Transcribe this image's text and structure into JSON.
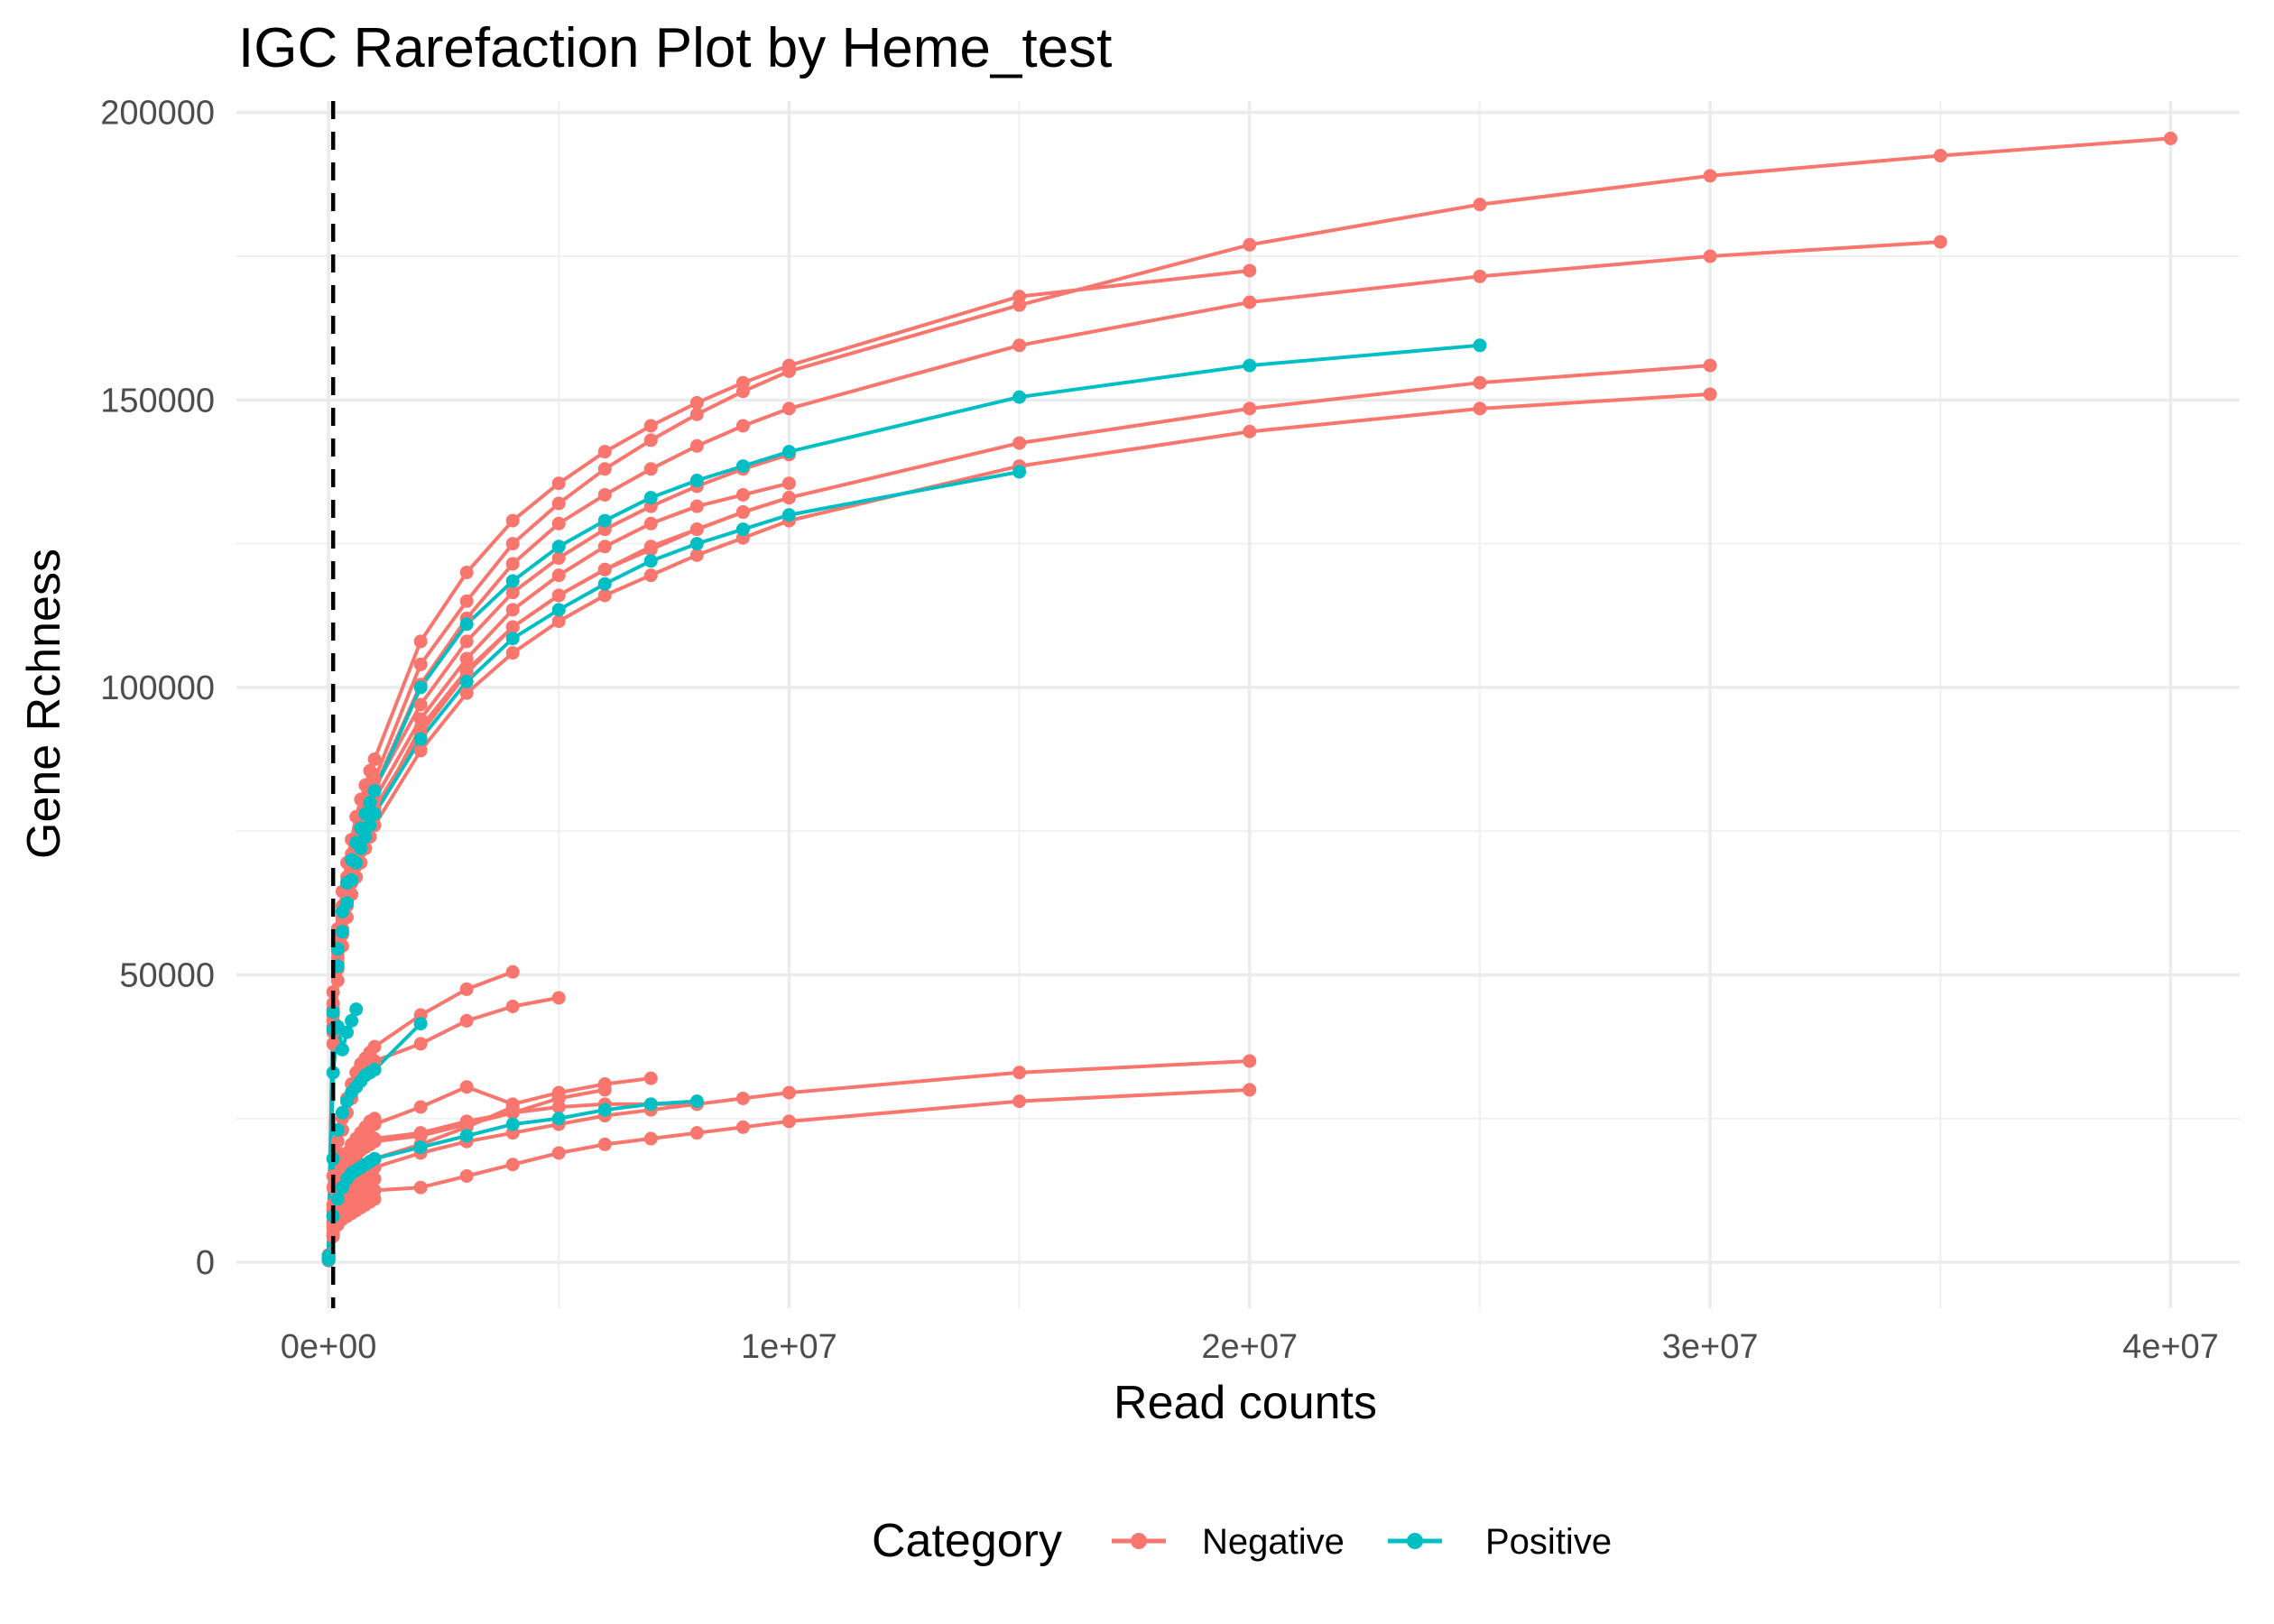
{
  "chart_data": {
    "type": "line",
    "title": "IGC Rarefaction Plot by Heme_test",
    "xlabel": "Read counts",
    "ylabel": "Gene Rchness",
    "xlim": [
      -2000000,
      41500000
    ],
    "ylim": [
      -8000,
      202000
    ],
    "x_ticks": [
      0,
      10000000,
      20000000,
      30000000,
      40000000
    ],
    "x_tick_labels": [
      "0e+00",
      "1e+07",
      "2e+07",
      "3e+07",
      "4e+07"
    ],
    "y_ticks": [
      0,
      50000,
      100000,
      150000,
      200000
    ],
    "y_tick_labels": [
      "0",
      "50000",
      "100000",
      "150000",
      "200000"
    ],
    "reference_line": {
      "x": 100000,
      "style": "dashed",
      "color": "#000000"
    },
    "grid": true,
    "legend": {
      "title": "Category",
      "placement": "bottom",
      "entries": [
        {
          "label": "Negative",
          "color": "#F8766D"
        },
        {
          "label": "Positive",
          "color": "#00BFC4"
        }
      ]
    },
    "series": [
      {
        "category": "Negative",
        "color": "#F8766D",
        "x": [
          1000,
          100000,
          200000,
          300000,
          400000,
          500000,
          600000,
          700000,
          800000,
          900000,
          1000000,
          2000000,
          3000000,
          4000000,
          5000000,
          6000000,
          7000000,
          8000000,
          9000000,
          10000000,
          15000000,
          20000000,
          25000000,
          30000000,
          35000000,
          40000000
        ],
        "y": [
          1200,
          45000,
          56000,
          62000,
          67000,
          71000,
          74000,
          77000,
          79500,
          82000,
          84000,
          104000,
          115000,
          125000,
          132000,
          138000,
          143000,
          147500,
          151500,
          155000,
          166500,
          177000,
          184000,
          189000,
          192500,
          195500
        ]
      },
      {
        "category": "Negative",
        "color": "#F8766D",
        "x": [
          1000,
          100000,
          200000,
          300000,
          400000,
          500000,
          600000,
          700000,
          800000,
          900000,
          1000000,
          2000000,
          3000000,
          4000000,
          5000000,
          6000000,
          7000000,
          8000000,
          9000000,
          10000000,
          15000000,
          20000000,
          25000000,
          30000000,
          35000000
        ],
        "y": [
          1100,
          43000,
          54000,
          60000,
          65000,
          69000,
          72000,
          75000,
          78000,
          80500,
          82500,
          100500,
          112000,
          121500,
          128500,
          133500,
          138000,
          142000,
          145500,
          148500,
          159500,
          167000,
          171500,
          175000,
          177500
        ]
      },
      {
        "category": "Negative",
        "color": "#F8766D",
        "x": [
          1000,
          100000,
          200000,
          300000,
          400000,
          500000,
          600000,
          700000,
          800000,
          900000,
          1000000,
          2000000,
          3000000,
          4000000,
          5000000,
          6000000,
          7000000,
          8000000,
          9000000,
          10000000,
          15000000,
          20000000
        ],
        "y": [
          1300,
          47000,
          58000,
          64500,
          69500,
          73500,
          77500,
          80500,
          83000,
          85500,
          87500,
          108000,
          120000,
          129000,
          135500,
          141000,
          145500,
          149500,
          153000,
          156000,
          168000,
          172500
        ]
      },
      {
        "category": "Negative",
        "color": "#F8766D",
        "x": [
          1000,
          100000,
          200000,
          300000,
          400000,
          500000,
          600000,
          700000,
          800000,
          900000,
          1000000,
          2000000,
          3000000,
          4000000,
          5000000,
          6000000,
          7000000,
          8000000,
          9000000,
          10000000,
          15000000,
          20000000,
          25000000,
          30000000
        ],
        "y": [
          1000,
          40000,
          51000,
          57000,
          62000,
          66000,
          69000,
          71500,
          74000,
          76000,
          78000,
          93000,
          103000,
          110500,
          116000,
          120500,
          124500,
          127500,
          130500,
          133000,
          142500,
          148500,
          153000,
          156000
        ]
      },
      {
        "category": "Negative",
        "color": "#F8766D",
        "x": [
          1000,
          100000,
          200000,
          300000,
          400000,
          500000,
          600000,
          700000,
          800000,
          900000,
          1000000,
          2000000,
          3000000,
          4000000,
          5000000,
          6000000,
          7000000,
          8000000,
          9000000,
          10000000,
          15000000,
          20000000,
          25000000,
          30000000
        ],
        "y": [
          950,
          38000,
          49000,
          55000,
          60000,
          64000,
          67000,
          69500,
          72000,
          74000,
          76000,
          89000,
          99000,
          106000,
          111500,
          116000,
          119500,
          123000,
          126000,
          129000,
          138500,
          144500,
          148500,
          151000
        ]
      },
      {
        "category": "Negative",
        "color": "#F8766D",
        "x": [
          1000,
          100000,
          200000,
          300000,
          400000,
          500000,
          600000,
          700000,
          800000,
          900000,
          1000000,
          2000000,
          3000000,
          4000000,
          5000000,
          6000000,
          7000000,
          8000000,
          9000000,
          10000000
        ],
        "y": [
          1150,
          44000,
          55000,
          61000,
          66000,
          70000,
          73000,
          76000,
          78500,
          80500,
          82500,
          97000,
          108000,
          116500,
          122500,
          127500,
          131500,
          135000,
          138000,
          140500
        ]
      },
      {
        "category": "Negative",
        "color": "#F8766D",
        "x": [
          1000,
          100000,
          200000,
          300000,
          400000,
          500000,
          600000,
          700000,
          800000,
          900000,
          1000000,
          2000000,
          3000000,
          4000000,
          5000000,
          6000000,
          7000000,
          8000000,
          9000000,
          10000000
        ],
        "y": [
          1000,
          41000,
          52000,
          58000,
          63000,
          67000,
          70000,
          72500,
          75000,
          77000,
          79000,
          92000,
          102500,
          110500,
          116000,
          120500,
          124000,
          127500,
          130500,
          133000
        ]
      },
      {
        "category": "Negative",
        "color": "#F8766D",
        "x": [
          1000,
          100000,
          200000,
          300000,
          400000,
          500000,
          600000,
          700000,
          800000,
          900000,
          1000000,
          2000000,
          3000000,
          4000000,
          5000000,
          6000000,
          7000000,
          8000000,
          9000000,
          10000000
        ],
        "y": [
          1050,
          42000,
          53000,
          59500,
          64500,
          68500,
          71500,
          74000,
          76500,
          78500,
          80500,
          94500,
          105000,
          113500,
          119500,
          124500,
          128500,
          131500,
          133500,
          135500
        ]
      },
      {
        "category": "Negative",
        "color": "#F8766D",
        "x": [
          1000,
          100000,
          200000,
          300000,
          400000,
          500000,
          600000,
          700000,
          800000,
          900000,
          1000000,
          2000000,
          3000000,
          4000000
        ],
        "y": [
          600,
          15000,
          21000,
          25000,
          28500,
          31000,
          33000,
          34500,
          35500,
          36500,
          37500,
          43000,
          47500,
          50500
        ]
      },
      {
        "category": "Negative",
        "color": "#F8766D",
        "x": [
          1000,
          100000,
          200000,
          300000,
          400000,
          500000,
          600000,
          700000,
          800000,
          900000,
          1000000,
          2000000,
          3000000,
          4000000,
          5000000
        ],
        "y": [
          550,
          13000,
          19000,
          23000,
          26000,
          28500,
          30500,
          32000,
          33000,
          34000,
          35000,
          38000,
          42000,
          44500,
          46000
        ]
      },
      {
        "category": "Negative",
        "color": "#F8766D",
        "x": [
          1000,
          100000,
          200000,
          300000,
          400000,
          500000,
          600000,
          700000,
          800000,
          900000,
          1000000,
          2000000,
          3000000,
          4000000,
          5000000,
          6000000,
          7000000,
          8000000,
          9000000,
          10000000,
          15000000,
          20000000
        ],
        "y": [
          400,
          8000,
          11500,
          14000,
          16000,
          17500,
          18500,
          19500,
          20500,
          21000,
          21500,
          22500,
          24500,
          26000,
          27000,
          27500,
          27500,
          27500,
          28500,
          29500,
          33000,
          35000
        ]
      },
      {
        "category": "Negative",
        "color": "#F8766D",
        "x": [
          1000,
          100000,
          200000,
          300000,
          400000,
          500000,
          600000,
          700000,
          800000,
          900000,
          1000000,
          2000000,
          3000000,
          4000000,
          5000000,
          6000000,
          7000000,
          8000000,
          9000000,
          10000000,
          15000000,
          20000000
        ],
        "y": [
          300,
          5000,
          7000,
          8500,
          9500,
          10000,
          10500,
          11000,
          11500,
          12000,
          12500,
          13000,
          15000,
          17000,
          19000,
          20500,
          21500,
          22500,
          23500,
          24500,
          28000,
          30000
        ]
      },
      {
        "category": "Negative",
        "color": "#F8766D",
        "x": [
          1000,
          100000,
          200000,
          300000,
          400000,
          500000,
          600000,
          700000,
          800000,
          900000,
          1000000,
          2000000,
          3000000,
          4000000,
          5000000,
          6000000,
          7000000
        ],
        "y": [
          450,
          9000,
          13000,
          15500,
          17500,
          19000,
          20500,
          21500,
          22500,
          23500,
          24000,
          27000,
          30500,
          27500,
          29500,
          31000,
          32000
        ]
      },
      {
        "category": "Negative",
        "color": "#F8766D",
        "x": [
          1000,
          100000,
          200000,
          300000,
          400000,
          500000,
          600000,
          700000,
          800000,
          900000,
          1000000,
          2000000,
          3000000,
          4000000,
          5000000,
          6000000
        ],
        "y": [
          420,
          8500,
          12000,
          14500,
          16000,
          17500,
          18500,
          19500,
          20000,
          20500,
          21000,
          22000,
          24000,
          26000,
          28500,
          30000
        ]
      },
      {
        "category": "Negative",
        "color": "#F8766D",
        "x": [
          1000,
          100000,
          200000,
          300000,
          400000,
          500000,
          600000,
          700000,
          800000,
          900000,
          1000000,
          2000000,
          3000000,
          4000000
        ],
        "y": [
          380,
          7000,
          10000,
          12000,
          13500,
          14500,
          15500,
          16500,
          17000,
          17500,
          18000,
          20500,
          23500,
          27000
        ]
      },
      {
        "category": "Negative",
        "color": "#F8766D",
        "x": [
          1000,
          100000,
          200000,
          300000,
          400000,
          500000,
          600000,
          700000,
          800000,
          900000,
          1000000,
          2000000,
          3000000,
          4000000,
          5000000,
          6000000,
          7000000,
          8000000
        ],
        "y": [
          350,
          6500,
          9500,
          11000,
          12500,
          13500,
          14500,
          15000,
          15500,
          16000,
          16500,
          19000,
          21000,
          22500,
          24000,
          25500,
          26500,
          27500
        ]
      },
      {
        "category": "Negative",
        "color": "#F8766D",
        "x": [
          1000,
          100000,
          200000,
          300000,
          400000,
          500000,
          600000,
          700000,
          800000,
          900000,
          1000000
        ],
        "y": [
          320,
          6000,
          8500,
          10000,
          11000,
          12000,
          12500,
          13000,
          13500,
          14000,
          14500
        ]
      },
      {
        "category": "Negative",
        "color": "#F8766D",
        "x": [
          1000,
          100000,
          200000,
          300000,
          400000,
          500000,
          600000,
          700000,
          800000,
          900000,
          1000000
        ],
        "y": [
          280,
          4500,
          6500,
          7500,
          8000,
          8500,
          9000,
          9500,
          10000,
          10500,
          11000
        ]
      },
      {
        "category": "Negative",
        "color": "#F8766D",
        "x": [
          1000,
          100000,
          200000,
          300000,
          400000,
          500000,
          600000,
          700000,
          800000,
          900000,
          1000000
        ],
        "y": [
          360,
          10000,
          14000,
          17000,
          19000,
          20500,
          21500,
          22500,
          23500,
          24500,
          25000
        ]
      },
      {
        "category": "Positive",
        "color": "#00BFC4",
        "x": [
          1000,
          100000,
          200000,
          300000,
          400000,
          500000,
          600000,
          700000,
          800000,
          900000,
          1000000,
          2000000,
          3000000,
          4000000,
          5000000,
          6000000,
          7000000,
          8000000,
          9000000,
          10000000,
          15000000,
          20000000,
          25000000
        ],
        "y": [
          1100,
          43500,
          54500,
          61000,
          66000,
          70000,
          73000,
          75500,
          78000,
          80000,
          82000,
          100000,
          111000,
          118500,
          124500,
          129000,
          133000,
          136000,
          138500,
          141000,
          150500,
          156000,
          159500
        ]
      },
      {
        "category": "Positive",
        "color": "#00BFC4",
        "x": [
          1000,
          100000,
          200000,
          300000,
          400000,
          500000,
          600000,
          700000,
          800000,
          900000,
          1000000,
          2000000,
          3000000,
          4000000,
          5000000,
          6000000,
          7000000,
          8000000,
          9000000,
          10000000,
          15000000
        ],
        "y": [
          1000,
          40500,
          51500,
          57500,
          62500,
          66500,
          69500,
          72000,
          74000,
          76000,
          78000,
          91000,
          101000,
          108500,
          113500,
          118000,
          122000,
          125000,
          127500,
          130000,
          137500
        ]
      },
      {
        "category": "Positive",
        "color": "#00BFC4",
        "x": [
          1000,
          100000,
          200000,
          300000,
          400000,
          500000,
          600000
        ],
        "y": [
          700,
          33000,
          41000,
          37000,
          40000,
          42000,
          44000
        ]
      },
      {
        "category": "Positive",
        "color": "#00BFC4",
        "x": [
          1000,
          100000,
          200000,
          300000,
          400000,
          500000,
          600000,
          700000,
          800000,
          900000,
          1000000,
          2000000
        ],
        "y": [
          600,
          18000,
          23000,
          26000,
          28000,
          29500,
          30500,
          31500,
          32500,
          33000,
          33500,
          41500
        ]
      },
      {
        "category": "Positive",
        "color": "#00BFC4",
        "x": [
          1000,
          100000,
          200000,
          300000,
          400000,
          500000,
          600000,
          700000,
          800000,
          900000,
          1000000,
          2000000,
          3000000,
          4000000,
          5000000,
          6000000,
          7000000,
          8000000
        ],
        "y": [
          400,
          8000,
          11000,
          13000,
          14500,
          15500,
          16000,
          16500,
          17000,
          17500,
          18000,
          20000,
          22000,
          24000,
          25000,
          26500,
          27500,
          28000
        ]
      }
    ]
  }
}
